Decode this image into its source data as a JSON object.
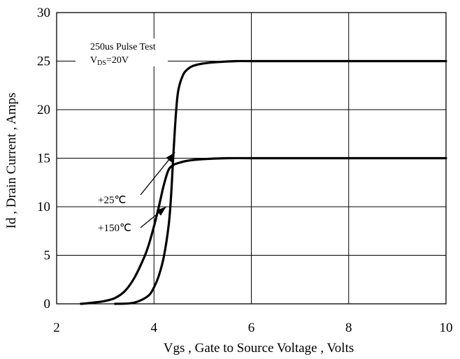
{
  "chart_data": {
    "type": "line",
    "xlabel": "Vgs , Gate to Source Voltage , Volts",
    "ylabel": "Id , Drain Current , Amps",
    "xlim": [
      2,
      10
    ],
    "ylim": [
      0,
      30
    ],
    "x_ticks": [
      "2",
      "4",
      "6",
      "8",
      "10"
    ],
    "y_ticks": [
      "0",
      "5",
      "10",
      "15",
      "20",
      "25",
      "30"
    ],
    "grid": true,
    "annotation": {
      "line1": "250us Pulse Test",
      "line2_main": "V",
      "line2_sub": "DS",
      "line2_rest": "=20V"
    },
    "series": [
      {
        "name": "+25℃",
        "x": [
          3.2,
          3.5,
          3.7,
          3.9,
          4.0,
          4.1,
          4.2,
          4.3,
          4.35,
          4.4,
          4.45,
          4.5,
          4.6,
          4.7,
          4.8,
          5.0,
          5.3,
          5.7,
          6.0,
          7.0,
          8.0,
          9.0,
          10.0
        ],
        "y": [
          0.0,
          0.05,
          0.3,
          0.9,
          1.7,
          2.9,
          4.8,
          8.0,
          11.0,
          15.5,
          19.5,
          22.0,
          23.6,
          24.2,
          24.5,
          24.75,
          24.9,
          25.0,
          25.0,
          25.0,
          25.0,
          25.0,
          25.0
        ],
        "label_arrow_target": [
          4.43,
          15.6
        ]
      },
      {
        "name": "+150℃",
        "x": [
          2.5,
          2.8,
          3.0,
          3.2,
          3.4,
          3.6,
          3.8,
          3.9,
          4.0,
          4.1,
          4.2,
          4.3,
          4.4,
          4.5,
          4.7,
          5.0,
          5.5,
          6.0,
          7.0,
          8.0,
          9.0,
          10.0
        ],
        "y": [
          0.0,
          0.15,
          0.3,
          0.6,
          1.3,
          2.7,
          4.8,
          6.2,
          8.0,
          10.0,
          12.2,
          13.8,
          14.3,
          14.5,
          14.75,
          14.9,
          15.0,
          15.0,
          15.0,
          15.0,
          15.0,
          15.0
        ],
        "label_arrow_target": [
          4.25,
          10.0
        ]
      }
    ]
  }
}
